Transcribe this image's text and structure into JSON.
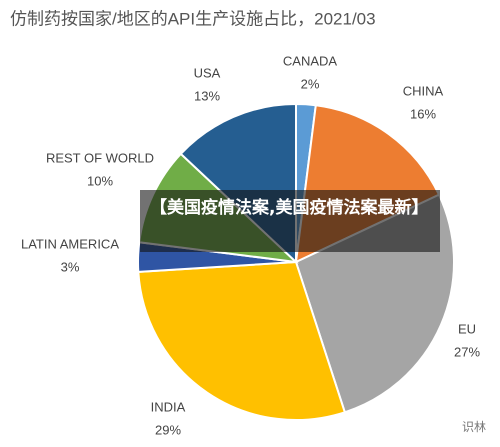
{
  "chart_data": {
    "type": "pie",
    "title": "仿制药按国家/地区的API生产设施占比，2021/03",
    "categories": [
      "CANADA",
      "CHINA",
      "EU",
      "INDIA",
      "LATIN AMERICA",
      "REST OF WORLD",
      "USA"
    ],
    "values": [
      2,
      16,
      27,
      29,
      3,
      10,
      13
    ],
    "value_labels": [
      "2%",
      "16%",
      "27%",
      "29%",
      "3%",
      "10%",
      "13%"
    ],
    "colors": [
      "#5b9bd5",
      "#ed7d31",
      "#a5a5a5",
      "#ffc000",
      "#2f55a4",
      "#70ad47",
      "#255e91"
    ]
  },
  "banner": "【美国疫情法案,美国疫情法案最新】",
  "watermark": "识林"
}
